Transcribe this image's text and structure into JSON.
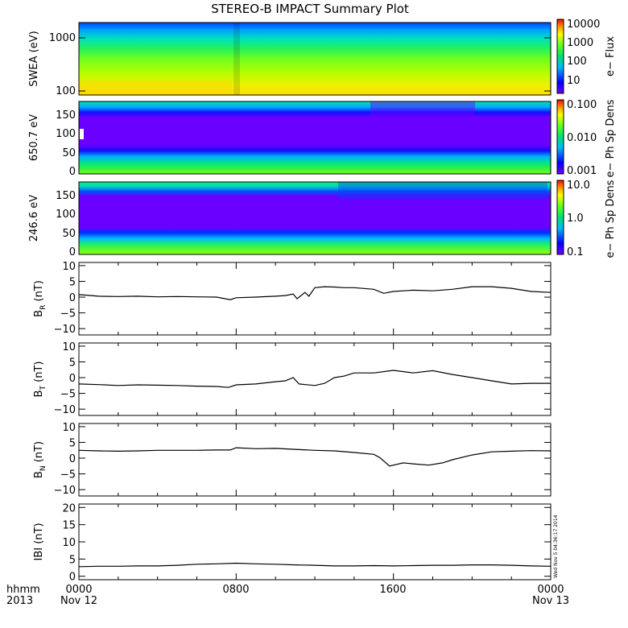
{
  "title": "STEREO-B IMPACT Summary Plot",
  "stamp": "Wed Nov  5 04:36:17 2014",
  "time_axis": {
    "row1": [
      "hhmm",
      "0000",
      "0800",
      "1600",
      "0000"
    ],
    "row2": [
      "2013",
      "Nov 12",
      "",
      "",
      "Nov 13"
    ]
  },
  "chart_data": [
    {
      "type": "heatmap",
      "name": "swea",
      "ylabel": "SWEA (eV)",
      "yscale": "log",
      "ylim": [
        90,
        2000
      ],
      "yticks": [
        "1000",
        "100"
      ],
      "colorbar": {
        "label": "e− Flux",
        "scale": "log",
        "ticks": [
          "10000",
          "1000",
          "100",
          "10"
        ]
      }
    },
    {
      "type": "heatmap",
      "name": "pad650",
      "ylabel": "650.7 eV",
      "ylim": [
        -10,
        180
      ],
      "yticks": [
        "150",
        "100",
        "50",
        "0"
      ],
      "colorbar": {
        "label": "e− Ph Sp Dens",
        "scale": "log",
        "ticks": [
          "0.100",
          "0.010",
          "0.001"
        ]
      }
    },
    {
      "type": "heatmap",
      "name": "pad246",
      "ylabel": "246.6 eV",
      "ylim": [
        -10,
        180
      ],
      "yticks": [
        "150",
        "100",
        "50",
        "0"
      ],
      "colorbar": {
        "label": "e− Ph Sp Dens",
        "scale": "log",
        "ticks": [
          "10.0",
          "1.0",
          "0.1"
        ]
      }
    },
    {
      "type": "line",
      "name": "br",
      "ylabel": "B",
      "ysub": "R",
      "yunit": "(nT)",
      "ylim": [
        -12,
        11
      ],
      "yticks": [
        "10",
        "5",
        "0",
        "−5",
        "−10"
      ],
      "x": [
        0,
        1,
        2,
        3,
        4,
        5,
        6,
        7,
        7.7,
        8,
        9,
        10,
        10.5,
        10.9,
        11.1,
        11.5,
        11.7,
        12,
        12.5,
        13,
        13.5,
        14,
        15,
        15.5,
        16,
        17,
        18,
        19,
        20,
        21,
        22,
        23,
        24
      ],
      "y": [
        0.8,
        0.3,
        0.2,
        0.3,
        0.1,
        0.2,
        0.1,
        0.0,
        -0.8,
        -0.2,
        0.0,
        0.3,
        0.5,
        1.0,
        -0.5,
        1.5,
        0.3,
        3.0,
        3.3,
        3.2,
        3.0,
        3.0,
        2.5,
        1.2,
        1.8,
        2.2,
        2.0,
        2.5,
        3.3,
        3.3,
        2.8,
        1.8,
        1.5
      ]
    },
    {
      "type": "line",
      "name": "bt",
      "ylabel": "B",
      "ysub": "T",
      "yunit": "(nT)",
      "ylim": [
        -12,
        11
      ],
      "yticks": [
        "10",
        "5",
        "0",
        "−5",
        "−10"
      ],
      "x": [
        0,
        1,
        2,
        3,
        4,
        5,
        6,
        7,
        7.6,
        8,
        9,
        10,
        10.5,
        10.9,
        11.2,
        12,
        12.5,
        13,
        13.5,
        14,
        15,
        16,
        17,
        18,
        19,
        20,
        21,
        22,
        23,
        24
      ],
      "y": [
        -2.0,
        -2.2,
        -2.5,
        -2.3,
        -2.4,
        -2.5,
        -2.7,
        -2.8,
        -3.1,
        -2.3,
        -2.0,
        -1.3,
        -1.0,
        0.0,
        -2.0,
        -2.5,
        -1.8,
        0.0,
        0.5,
        1.5,
        1.5,
        2.3,
        1.5,
        2.2,
        1.0,
        0.0,
        -1.0,
        -2.0,
        -1.8,
        -1.8
      ]
    },
    {
      "type": "line",
      "name": "bn",
      "ylabel": "B",
      "ysub": "N",
      "yunit": "(nT)",
      "ylim": [
        -12,
        11
      ],
      "yticks": [
        "10",
        "5",
        "0",
        "−5",
        "−10"
      ],
      "x": [
        0,
        1,
        2,
        3,
        4,
        5,
        6,
        7,
        7.7,
        8,
        9,
        10,
        11,
        12,
        13,
        14,
        15,
        15.3,
        15.8,
        16.5,
        17,
        17.8,
        18.5,
        19,
        20,
        21,
        22,
        23,
        24
      ],
      "y": [
        2.5,
        2.3,
        2.2,
        2.3,
        2.5,
        2.5,
        2.5,
        2.6,
        2.6,
        3.3,
        3.0,
        3.1,
        2.8,
        2.5,
        2.3,
        1.8,
        1.2,
        0.2,
        -2.5,
        -1.5,
        -1.8,
        -2.2,
        -1.5,
        -0.5,
        1.0,
        2.0,
        2.2,
        2.4,
        2.3
      ]
    },
    {
      "type": "line",
      "name": "bmag",
      "ylabel": "IBI (nT)",
      "ylim": [
        -1,
        21
      ],
      "yticks": [
        "20",
        "15",
        "10",
        "5",
        "0"
      ],
      "x": [
        0,
        1,
        2,
        3,
        4,
        5,
        6,
        7,
        8,
        9,
        10,
        11,
        12,
        13,
        14,
        15,
        16,
        17,
        18,
        19,
        20,
        21,
        22,
        23,
        24
      ],
      "y": [
        2.8,
        2.9,
        2.9,
        3.0,
        3.0,
        3.2,
        3.5,
        3.6,
        3.8,
        3.6,
        3.5,
        3.3,
        3.2,
        3.0,
        3.0,
        3.1,
        3.0,
        3.1,
        3.2,
        3.2,
        3.3,
        3.3,
        3.2,
        3.0,
        2.9
      ]
    }
  ]
}
